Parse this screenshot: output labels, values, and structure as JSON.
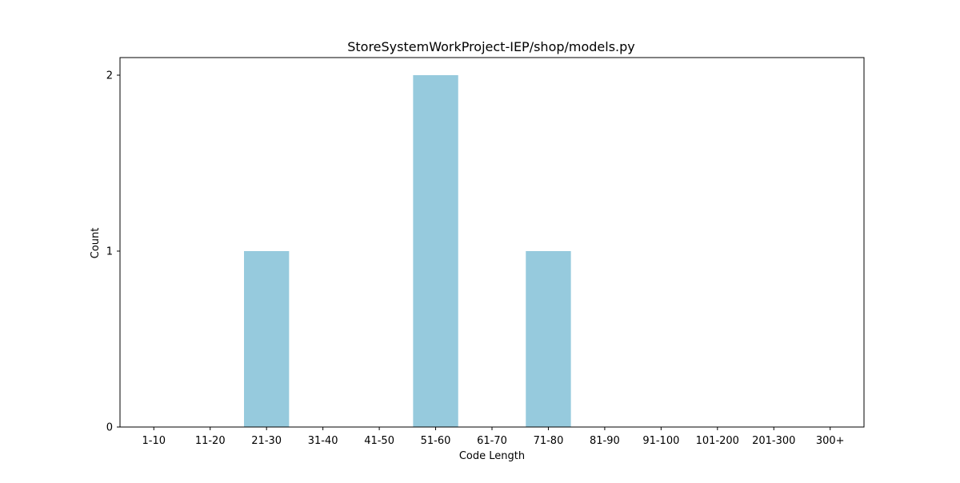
{
  "chart_data": {
    "type": "bar",
    "title": "StoreSystemWorkProject-IEP/shop/models.py",
    "xlabel": "Code Length",
    "ylabel": "Count",
    "categories": [
      "1-10",
      "11-20",
      "21-30",
      "31-40",
      "41-50",
      "51-60",
      "61-70",
      "71-80",
      "81-90",
      "91-100",
      "101-200",
      "201-300",
      "300+"
    ],
    "values": [
      0,
      0,
      1,
      0,
      0,
      2,
      0,
      1,
      0,
      0,
      0,
      0,
      0
    ],
    "yticks": [
      0,
      1,
      2
    ],
    "ylim": [
      0,
      2.1
    ],
    "bar_color": "#96cadd",
    "grid": false,
    "legend": "none"
  }
}
